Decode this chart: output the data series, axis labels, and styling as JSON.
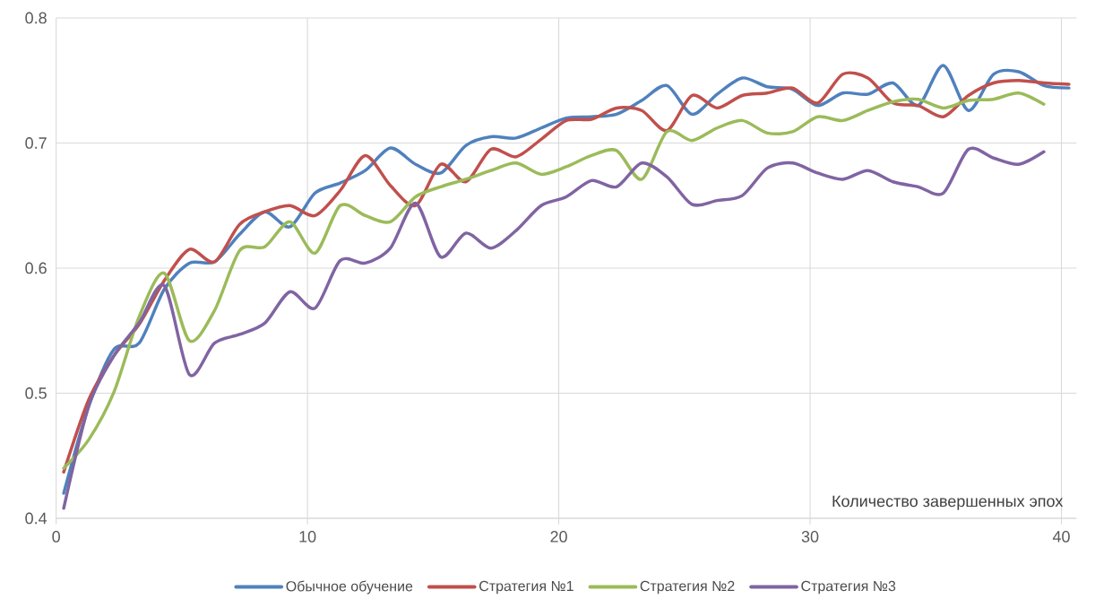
{
  "chart_data": {
    "type": "line",
    "xlabel": "Количество завершенных эпох",
    "xlim": [
      0,
      40.6
    ],
    "ylim": [
      0.4,
      0.8
    ],
    "xticks": [
      0,
      10,
      20,
      30,
      40
    ],
    "yticks": [
      0.4,
      0.5,
      0.6,
      0.7,
      0.8
    ],
    "grid": true,
    "legend": "bottom",
    "series": [
      {
        "name": "Обычное обучение",
        "color": "#4f81bd",
        "x": [
          0.3,
          1.3,
          2.3,
          3.3,
          4.3,
          5.3,
          6.3,
          7.3,
          8.3,
          9.3,
          10.3,
          11.3,
          12.3,
          13.3,
          14.3,
          15.3,
          16.3,
          17.3,
          18.3,
          19.3,
          20.3,
          21.3,
          22.3,
          23.3,
          24.3,
          25.3,
          26.3,
          27.3,
          28.3,
          29.3,
          30.3,
          31.3,
          32.3,
          33.3,
          34.3,
          35.3,
          36.3,
          37.3,
          38.3,
          39.3,
          40.3
        ],
        "values": [
          0.42,
          0.49,
          0.535,
          0.54,
          0.583,
          0.604,
          0.605,
          0.627,
          0.645,
          0.633,
          0.66,
          0.668,
          0.678,
          0.696,
          0.683,
          0.676,
          0.698,
          0.705,
          0.704,
          0.712,
          0.72,
          0.721,
          0.723,
          0.734,
          0.746,
          0.723,
          0.739,
          0.752,
          0.745,
          0.743,
          0.73,
          0.74,
          0.739,
          0.748,
          0.73,
          0.762,
          0.726,
          0.755,
          0.757,
          0.746,
          0.744
        ]
      },
      {
        "name": "Стратегия №1",
        "color": "#c0504d",
        "x": [
          0.3,
          1.3,
          2.3,
          3.3,
          4.3,
          5.3,
          6.3,
          7.3,
          8.3,
          9.3,
          10.3,
          11.3,
          12.3,
          13.3,
          14.3,
          15.3,
          16.3,
          17.3,
          18.3,
          19.3,
          20.3,
          21.3,
          22.3,
          23.3,
          24.3,
          25.3,
          26.3,
          27.3,
          28.3,
          29.3,
          30.3,
          31.3,
          32.3,
          33.3,
          34.3,
          35.3,
          36.3,
          37.3,
          38.3,
          39.3,
          40.3
        ],
        "values": [
          0.437,
          0.495,
          0.53,
          0.555,
          0.59,
          0.615,
          0.605,
          0.635,
          0.645,
          0.65,
          0.642,
          0.662,
          0.69,
          0.666,
          0.65,
          0.683,
          0.669,
          0.695,
          0.689,
          0.703,
          0.718,
          0.719,
          0.728,
          0.726,
          0.71,
          0.738,
          0.728,
          0.738,
          0.74,
          0.744,
          0.732,
          0.755,
          0.752,
          0.732,
          0.73,
          0.721,
          0.738,
          0.748,
          0.75,
          0.748,
          0.747
        ]
      },
      {
        "name": "Стратегия №2",
        "color": "#9bbb59",
        "x": [
          0.3,
          1.3,
          2.3,
          3.3,
          4.3,
          5.3,
          6.3,
          7.3,
          8.3,
          9.3,
          10.3,
          11.3,
          12.3,
          13.3,
          14.3,
          15.3,
          16.3,
          17.3,
          18.3,
          19.3,
          20.3,
          21.3,
          22.3,
          23.3,
          24.3,
          25.3,
          26.3,
          27.3,
          28.3,
          29.3,
          30.3,
          31.3,
          32.3,
          33.3,
          34.3,
          35.3,
          36.3,
          37.3,
          38.3,
          39.3
        ],
        "values": [
          0.44,
          0.463,
          0.501,
          0.561,
          0.596,
          0.542,
          0.566,
          0.614,
          0.617,
          0.637,
          0.612,
          0.65,
          0.642,
          0.637,
          0.657,
          0.665,
          0.671,
          0.678,
          0.684,
          0.675,
          0.681,
          0.69,
          0.694,
          0.671,
          0.709,
          0.702,
          0.712,
          0.718,
          0.708,
          0.709,
          0.721,
          0.718,
          0.726,
          0.733,
          0.735,
          0.728,
          0.734,
          0.735,
          0.74,
          0.731
        ]
      },
      {
        "name": "Стратегия №3",
        "color": "#8064a2",
        "x": [
          0.3,
          1.3,
          2.3,
          3.3,
          4.3,
          5.3,
          6.3,
          7.3,
          8.3,
          9.3,
          10.3,
          11.3,
          12.3,
          13.3,
          14.3,
          15.3,
          16.3,
          17.3,
          18.3,
          19.3,
          20.3,
          21.3,
          22.3,
          23.3,
          24.3,
          25.3,
          26.3,
          27.3,
          28.3,
          29.3,
          30.3,
          31.3,
          32.3,
          33.3,
          34.3,
          35.3,
          36.3,
          37.3,
          38.3,
          39.3
        ],
        "values": [
          0.408,
          0.49,
          0.53,
          0.556,
          0.586,
          0.515,
          0.54,
          0.547,
          0.556,
          0.581,
          0.568,
          0.606,
          0.604,
          0.616,
          0.652,
          0.609,
          0.628,
          0.616,
          0.63,
          0.65,
          0.657,
          0.67,
          0.665,
          0.684,
          0.673,
          0.651,
          0.654,
          0.658,
          0.68,
          0.684,
          0.676,
          0.671,
          0.678,
          0.669,
          0.665,
          0.66,
          0.695,
          0.688,
          0.683,
          0.693
        ]
      }
    ]
  }
}
